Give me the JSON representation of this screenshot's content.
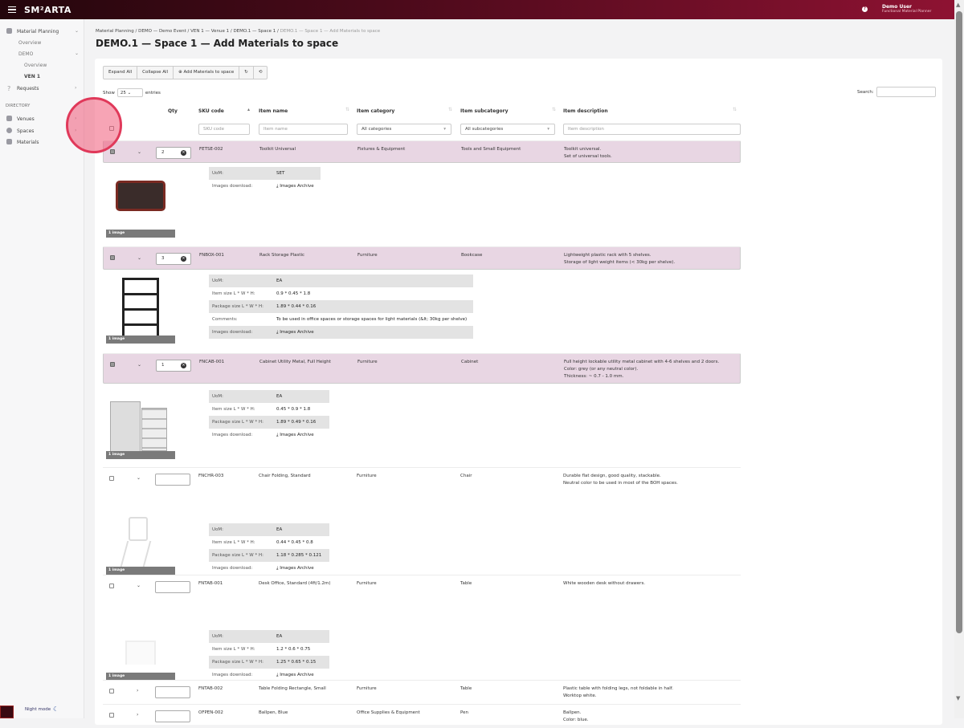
{
  "header": {
    "logo": "SM²ARTA",
    "user_name": "Demo User",
    "user_role": "Functional Material Planner",
    "help_icon": "?"
  },
  "sidebar": {
    "material_planning": "Material Planning",
    "overview": "Overview",
    "demo": "DEMO",
    "demo_overview": "Overview",
    "ven1": "VEN 1",
    "requests": "Requests",
    "directory": "DIRECTORY",
    "venues": "Venues",
    "spaces": "Spaces",
    "materials": "Materials",
    "night_mode": "Night mode"
  },
  "breadcrumbs": [
    "Material Planning",
    "DEMO — Demo Event",
    "VEN 1 — Venue 1",
    "DEMO.1 — Space 1",
    "DEMO.1 — Space 1 — Add Materials to space"
  ],
  "page_title": "DEMO.1 — Space 1 — Add Materials to space",
  "toolbar": {
    "expand_all": "Expand All",
    "collapse_all": "Collapse All",
    "add_materials": "Add Materials to space"
  },
  "table_controls": {
    "show": "Show",
    "page_size": "25",
    "entries": "entries",
    "search_label": "Search:"
  },
  "columns": {
    "qty": "Qty",
    "sku": "SKU code",
    "name": "Item name",
    "category": "Item category",
    "subcategory": "Item subcategory",
    "description": "Item description"
  },
  "filters": {
    "sku": "SKU code",
    "name": "Item name",
    "category": "All categories",
    "subcategory": "All subcategories",
    "description": "Item description"
  },
  "detail_labels": {
    "uom": "UoM:",
    "item_size": "Item size L * W * H:",
    "package_size": "Package size L * W * H:",
    "comments": "Comments:",
    "images_download": "Images download:",
    "images_archive": "Images Archive",
    "image_count": "1 image"
  },
  "rows": [
    {
      "checked": true,
      "expanded": true,
      "qty": "2",
      "sku": "FETSE-002",
      "name": "Toolkit Universal",
      "category": "Fixtures & Equipment",
      "subcategory": "Tools and Small Equipment",
      "description": "Toolkit universal.\nSet of universal tools.",
      "uom": "SET"
    },
    {
      "checked": true,
      "expanded": true,
      "qty": "3",
      "sku": "FNBOX-001",
      "name": "Rack Storage Plastic",
      "category": "Furniture",
      "subcategory": "Bookcase",
      "description": "Lightweight plastic rack with 5 shelves.\nStorage of light weight items (< 30kg per shelve).",
      "uom": "EA",
      "item_size": "0.9 * 0.45 * 1.8",
      "package_size": "1.89 * 0.44 * 0.16",
      "comments": "To be used in office spaces or storage spaces for light materials (&lt; 30kg per shelve)"
    },
    {
      "checked": true,
      "expanded": true,
      "qty": "1",
      "sku": "FNCAB-001",
      "name": "Cabinet Utility Metal, Full Height",
      "category": "Furniture",
      "subcategory": "Cabinet",
      "description": "Full height lockable utility metal cabinet with 4-6 shelves and 2 doors.\nColor: grey (or any neutral color).\nThickness: ~ 0.7 - 1.0 mm.",
      "uom": "EA",
      "item_size": "0.45 * 0.9 * 1.8",
      "package_size": "1.89 * 0.49 * 0.16"
    },
    {
      "checked": false,
      "expanded": true,
      "qty": "",
      "sku": "FNCHR-003",
      "name": "Chair Folding, Standard",
      "category": "Furniture",
      "subcategory": "Chair",
      "description": "Durable flat design, good quality, stackable.\nNeutral color to be used in most of the BOH spaces.",
      "uom": "EA",
      "item_size": "0.44 * 0.45 * 0.8",
      "package_size": "1.18 * 0.285 * 0.121"
    },
    {
      "checked": false,
      "expanded": true,
      "qty": "",
      "sku": "FNTAB-001",
      "name": "Desk Office, Standard (4ft/1.2m)",
      "category": "Furniture",
      "subcategory": "Table",
      "description": "White wooden desk without drawers.",
      "uom": "EA",
      "item_size": "1.2 * 0.6 * 0.75",
      "package_size": "1.25 * 0.65 * 0.15"
    },
    {
      "checked": false,
      "expanded": false,
      "qty": "",
      "sku": "FNTAB-002",
      "name": "Table Folding Rectangle, Small",
      "category": "Furniture",
      "subcategory": "Table",
      "description": "Plastic table with folding legs, not foldable in half.\nWorktop white."
    },
    {
      "checked": false,
      "expanded": false,
      "qty": "",
      "sku": "OFPEN-002",
      "name": "Ballpen, Blue",
      "category": "Office Supplies & Equipment",
      "subcategory": "Pen",
      "description": "Ballpen.\nColor: blue."
    }
  ],
  "colors": {
    "header_dark": "#24060c",
    "header_accent": "#8e1232",
    "selected_row": "#e8d6e3",
    "link": "#2b5ea8"
  }
}
